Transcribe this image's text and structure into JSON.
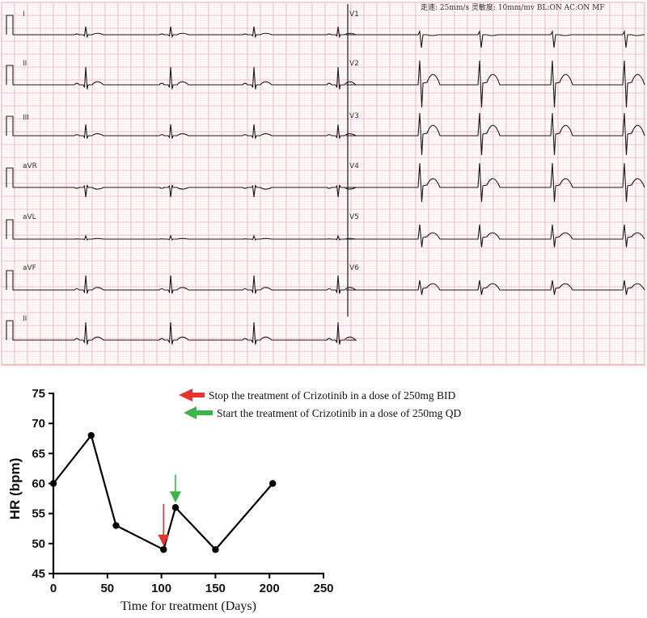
{
  "ecg": {
    "header": "走速: 25mm/s 灵敏度: 10mm/mv BL:ON AC:ON MF",
    "grid_color": "#f4a6ad",
    "fine_grid_color": "#fbd9dc",
    "trace_color": "#1a1a1a",
    "left_leads": [
      "I",
      "II",
      "III",
      "aVR",
      "aVL",
      "aVF",
      "II"
    ],
    "right_leads": [
      "V1",
      "V2",
      "V3",
      "V4",
      "V5",
      "V6"
    ]
  },
  "chart_data": {
    "type": "line",
    "title": "",
    "xlabel": "Time for treatment (Days)",
    "ylabel": "HR (bpm)",
    "xlim": [
      0,
      250
    ],
    "ylim": [
      45,
      75
    ],
    "xticks": [
      0,
      50,
      100,
      150,
      200,
      250
    ],
    "yticks": [
      45,
      50,
      55,
      60,
      65,
      70,
      75
    ],
    "series": [
      {
        "x": [
          0,
          35,
          58,
          102,
          113,
          150,
          203
        ],
        "y": [
          60,
          68,
          53,
          49,
          56,
          49,
          60
        ],
        "color": "#000000"
      }
    ],
    "annotations": [
      {
        "type": "arrow",
        "color": "#e8322e",
        "x": 102,
        "text": "Stop the treatment of Crizotinib in a dose of 250mg BID"
      },
      {
        "type": "arrow",
        "color": "#3cb44b",
        "x": 113,
        "text": "Start the treatment of Crizotinib in a dose of 250mg QD"
      }
    ]
  }
}
